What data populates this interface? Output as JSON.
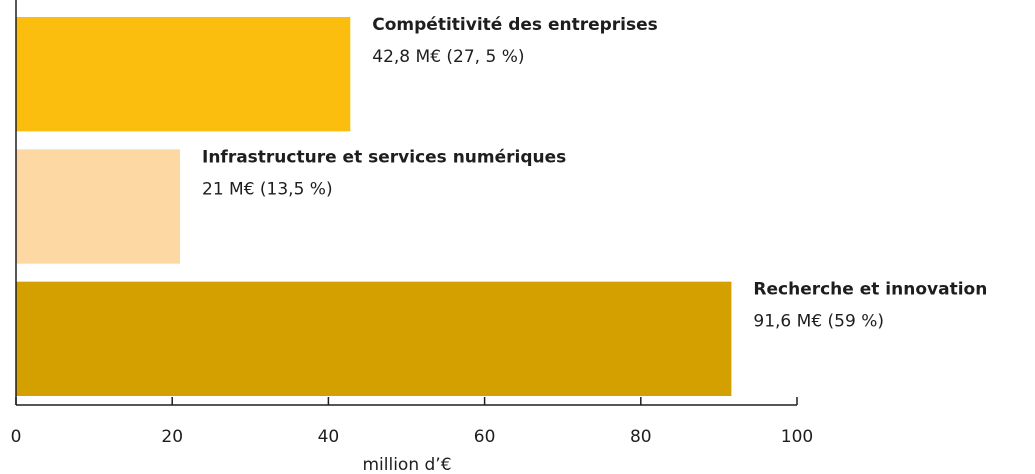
{
  "chart_data": {
    "type": "hbar",
    "categories": [
      "Compétitivité des entreprises",
      "Infrastructure et services numériques",
      "Recherche et innovation"
    ],
    "values": [
      42.8,
      21,
      91.6
    ],
    "value_labels": [
      "42,8 M€ (27, 5 %)",
      "21 M€ (13,5 %)",
      "91,6 M€ (59 %)"
    ],
    "colors": [
      "#fbbd0e",
      "#fdd8a3",
      "#d3a000"
    ],
    "xlabel": "million d’€",
    "xlim": [
      0,
      100
    ],
    "xticks": [
      0,
      20,
      40,
      60,
      80,
      100
    ],
    "grid": false
  }
}
